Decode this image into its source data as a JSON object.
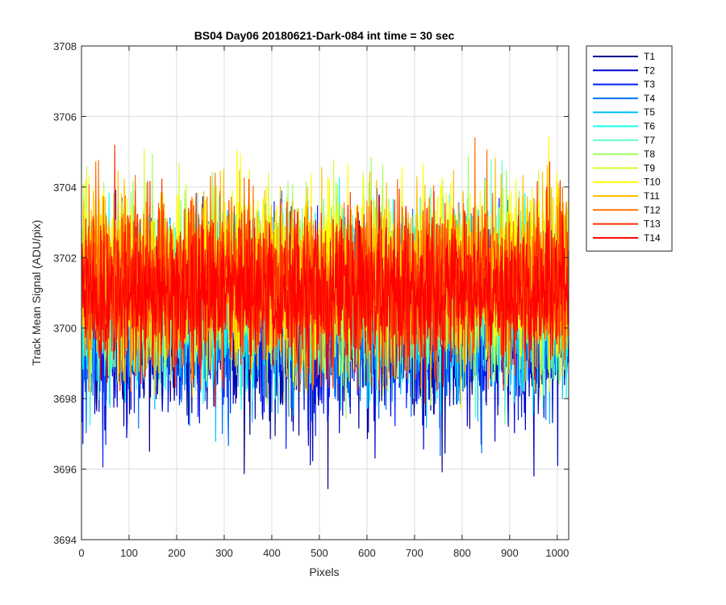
{
  "chart_data": {
    "type": "line",
    "title": "BS04 Day06 20180621-Dark-084 int time = 30 sec",
    "xlabel": "Pixels",
    "ylabel": "Track Mean Signal (ADU/pix)",
    "xlim": [
      0,
      1024
    ],
    "ylim": [
      3694,
      3708
    ],
    "xticks": [
      0,
      100,
      200,
      300,
      400,
      500,
      600,
      700,
      800,
      900,
      1000
    ],
    "yticks": [
      3694,
      3696,
      3698,
      3700,
      3702,
      3704,
      3706,
      3708
    ],
    "grid": true,
    "legend_position": "outside-top-right",
    "n_points_per_series": 1024,
    "series": [
      {
        "name": "T1",
        "color": "#00008f",
        "mean": 3699.9,
        "noise_amplitude": 1.6,
        "min": 3694.85,
        "max": 3703.9
      },
      {
        "name": "T2",
        "color": "#0000d0",
        "mean": 3700.0,
        "noise_amplitude": 1.6,
        "min": 3695.5,
        "max": 3704.0
      },
      {
        "name": "T3",
        "color": "#0020ff",
        "mean": 3700.2,
        "noise_amplitude": 1.6,
        "min": 3696.0,
        "max": 3704.2
      },
      {
        "name": "T4",
        "color": "#0070ff",
        "mean": 3700.4,
        "noise_amplitude": 1.6,
        "min": 3696.2,
        "max": 3704.5
      },
      {
        "name": "T5",
        "color": "#00c0ff",
        "mean": 3700.6,
        "noise_amplitude": 1.6,
        "min": 3696.6,
        "max": 3705.0
      },
      {
        "name": "T6",
        "color": "#10ffef",
        "mean": 3700.8,
        "noise_amplitude": 1.6,
        "min": 3697.0,
        "max": 3705.4
      },
      {
        "name": "T7",
        "color": "#60ffc0",
        "mean": 3701.0,
        "noise_amplitude": 1.6,
        "min": 3697.2,
        "max": 3706.35
      },
      {
        "name": "T8",
        "color": "#9fff60",
        "mean": 3701.2,
        "noise_amplitude": 1.6,
        "min": 3697.4,
        "max": 3706.0
      },
      {
        "name": "T9",
        "color": "#cfff30",
        "mean": 3701.4,
        "noise_amplitude": 1.6,
        "min": 3697.6,
        "max": 3706.4
      },
      {
        "name": "T10",
        "color": "#ffff00",
        "mean": 3701.6,
        "noise_amplitude": 1.6,
        "min": 3697.8,
        "max": 3706.45
      },
      {
        "name": "T11",
        "color": "#ffc000",
        "mean": 3701.5,
        "noise_amplitude": 1.6,
        "min": 3698.0,
        "max": 3706.2
      },
      {
        "name": "T12",
        "color": "#ff7000",
        "mean": 3701.3,
        "noise_amplitude": 1.6,
        "min": 3698.2,
        "max": 3706.3
      },
      {
        "name": "T13",
        "color": "#ff3000",
        "mean": 3701.1,
        "noise_amplitude": 1.6,
        "min": 3698.2,
        "max": 3706.25
      },
      {
        "name": "T14",
        "color": "#ff0000",
        "mean": 3701.0,
        "noise_amplitude": 1.3,
        "min": 3696.7,
        "max": 3705.5
      }
    ]
  }
}
